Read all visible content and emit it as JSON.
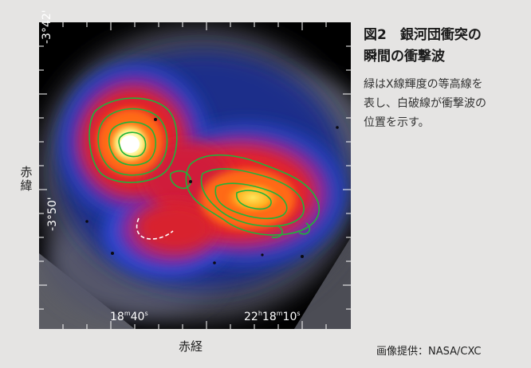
{
  "figure": {
    "title_line1": "図2　銀河団衝突の",
    "title_line2": "瞬間の衝撃波",
    "caption_line1": "緑はX線輝度の等高線を",
    "caption_line2": "表し、白破線が衝撃波の",
    "caption_line3": "位置を示す。",
    "credit": "画像提供：NASA/CXC"
  },
  "axes": {
    "dec_label_1": "赤",
    "dec_label_2": "緯",
    "ra_label": "赤経",
    "dec_tick_1": "-3°42'",
    "dec_tick_2": "-3°50'",
    "ra_tick_1": {
      "value": "18",
      "unit": "m",
      "sec": "40",
      "s": "s"
    },
    "ra_tick_2": {
      "hours": "22",
      "h": "h",
      "min": "18",
      "m": "m",
      "sec": "10",
      "s": "s"
    }
  },
  "colors": {
    "page_background": "#e5e4e3",
    "image_background": "#000000",
    "contour": "#1fb43a",
    "shock_front": "#ffffff"
  }
}
